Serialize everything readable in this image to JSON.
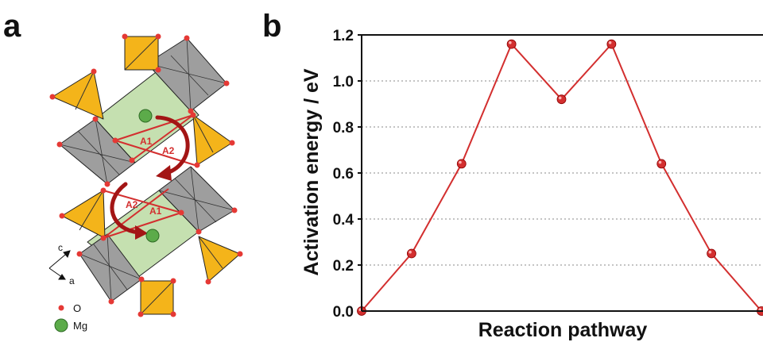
{
  "panel_a": {
    "label": "a",
    "axes": {
      "c": "c",
      "a": "a"
    },
    "paths": [
      "A1",
      "A2",
      "A2",
      "A1"
    ],
    "legend": [
      {
        "label": "O",
        "color": "#e53935"
      },
      {
        "label": "Mg",
        "color": "#5cab4a"
      }
    ],
    "colors": {
      "octahedron": "#9e9e9e",
      "tetrahedron": "#f4b41a",
      "mg_octahedron": "#c5e0b0",
      "path": "#d32f2f",
      "arrow": "#a31515"
    }
  },
  "panel_b": {
    "label": "b"
  },
  "chart_data": {
    "type": "line",
    "title": "",
    "xlabel": "Reaction pathway",
    "ylabel": "Activation energy / eV",
    "ylim": [
      0,
      1.2
    ],
    "yticks": [
      "0.0",
      "0.2",
      "0.4",
      "0.6",
      "0.8",
      "1.0",
      "1.2"
    ],
    "grid": "horizontal dotted",
    "color": "#d32f2f",
    "series": [
      {
        "x": [
          0,
          1,
          2,
          3,
          4,
          5,
          6,
          7,
          8
        ],
        "values": [
          0.0,
          0.25,
          0.64,
          1.16,
          0.92,
          1.16,
          0.64,
          0.25,
          0.0
        ]
      }
    ]
  }
}
